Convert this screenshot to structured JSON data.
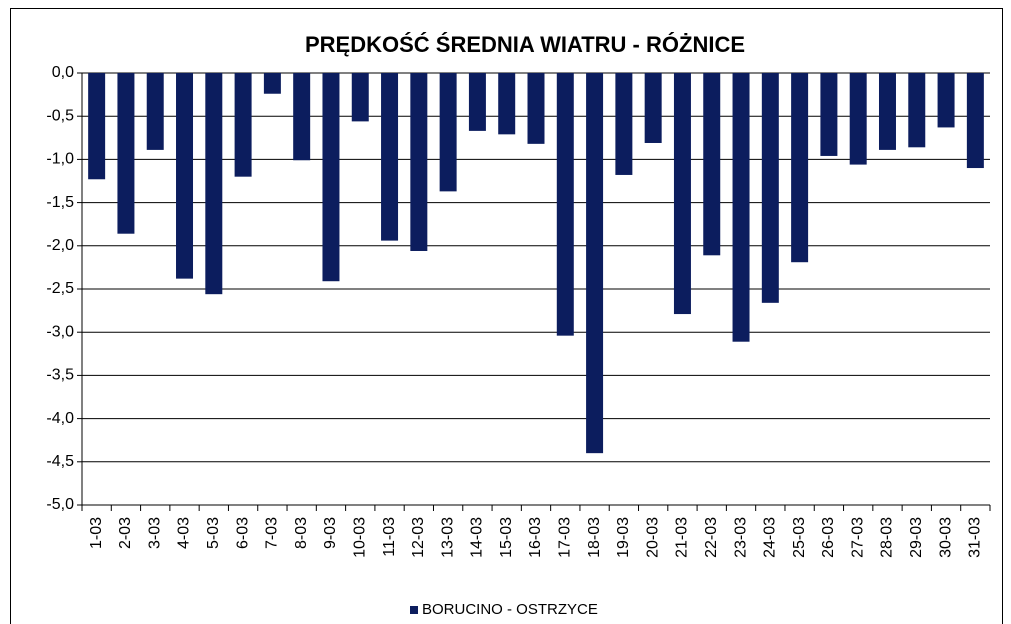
{
  "chart_data": {
    "type": "bar",
    "title": "PRĘDKOŚĆ ŚREDNIA WIATRU - RÓŻNICE",
    "categories": [
      "1-03",
      "2-03",
      "3-03",
      "4-03",
      "5-03",
      "6-03",
      "7-03",
      "8-03",
      "9-03",
      "10-03",
      "11-03",
      "12-03",
      "13-03",
      "14-03",
      "15-03",
      "16-03",
      "17-03",
      "18-03",
      "19-03",
      "20-03",
      "21-03",
      "22-03",
      "23-03",
      "24-03",
      "25-03",
      "26-03",
      "27-03",
      "28-03",
      "29-03",
      "30-03",
      "31-03"
    ],
    "series": [
      {
        "name": "BORUCINO  - OSTRZYCE",
        "color": "#0c1d5e",
        "values": [
          -1.23,
          -1.86,
          -0.89,
          -2.38,
          -2.56,
          -1.2,
          -0.24,
          -1.01,
          -2.41,
          -0.56,
          -1.94,
          -2.06,
          -1.37,
          -0.67,
          -0.71,
          -0.82,
          -3.04,
          -4.4,
          -1.18,
          -0.81,
          -2.79,
          -2.11,
          -3.11,
          -2.66,
          -2.19,
          -0.96,
          -1.06,
          -0.89,
          -0.86,
          -0.63,
          -1.1
        ]
      }
    ],
    "ylim": [
      -5,
      0
    ],
    "yticks": [
      {
        "value": -5,
        "label": "-5,0"
      },
      {
        "value": -4.5,
        "label": "-4,5"
      },
      {
        "value": -4,
        "label": "-4,0"
      },
      {
        "value": -3.5,
        "label": "-3,5"
      },
      {
        "value": -3,
        "label": "-3,0"
      },
      {
        "value": -2.5,
        "label": "-2,5"
      },
      {
        "value": -2,
        "label": "-2,0"
      },
      {
        "value": -1.5,
        "label": "-1,5"
      },
      {
        "value": -1,
        "label": "-1,0"
      },
      {
        "value": -0.5,
        "label": "-0,5"
      },
      {
        "value": 0,
        "label": "0,0"
      }
    ],
    "grid": true,
    "legend": "bottom"
  }
}
